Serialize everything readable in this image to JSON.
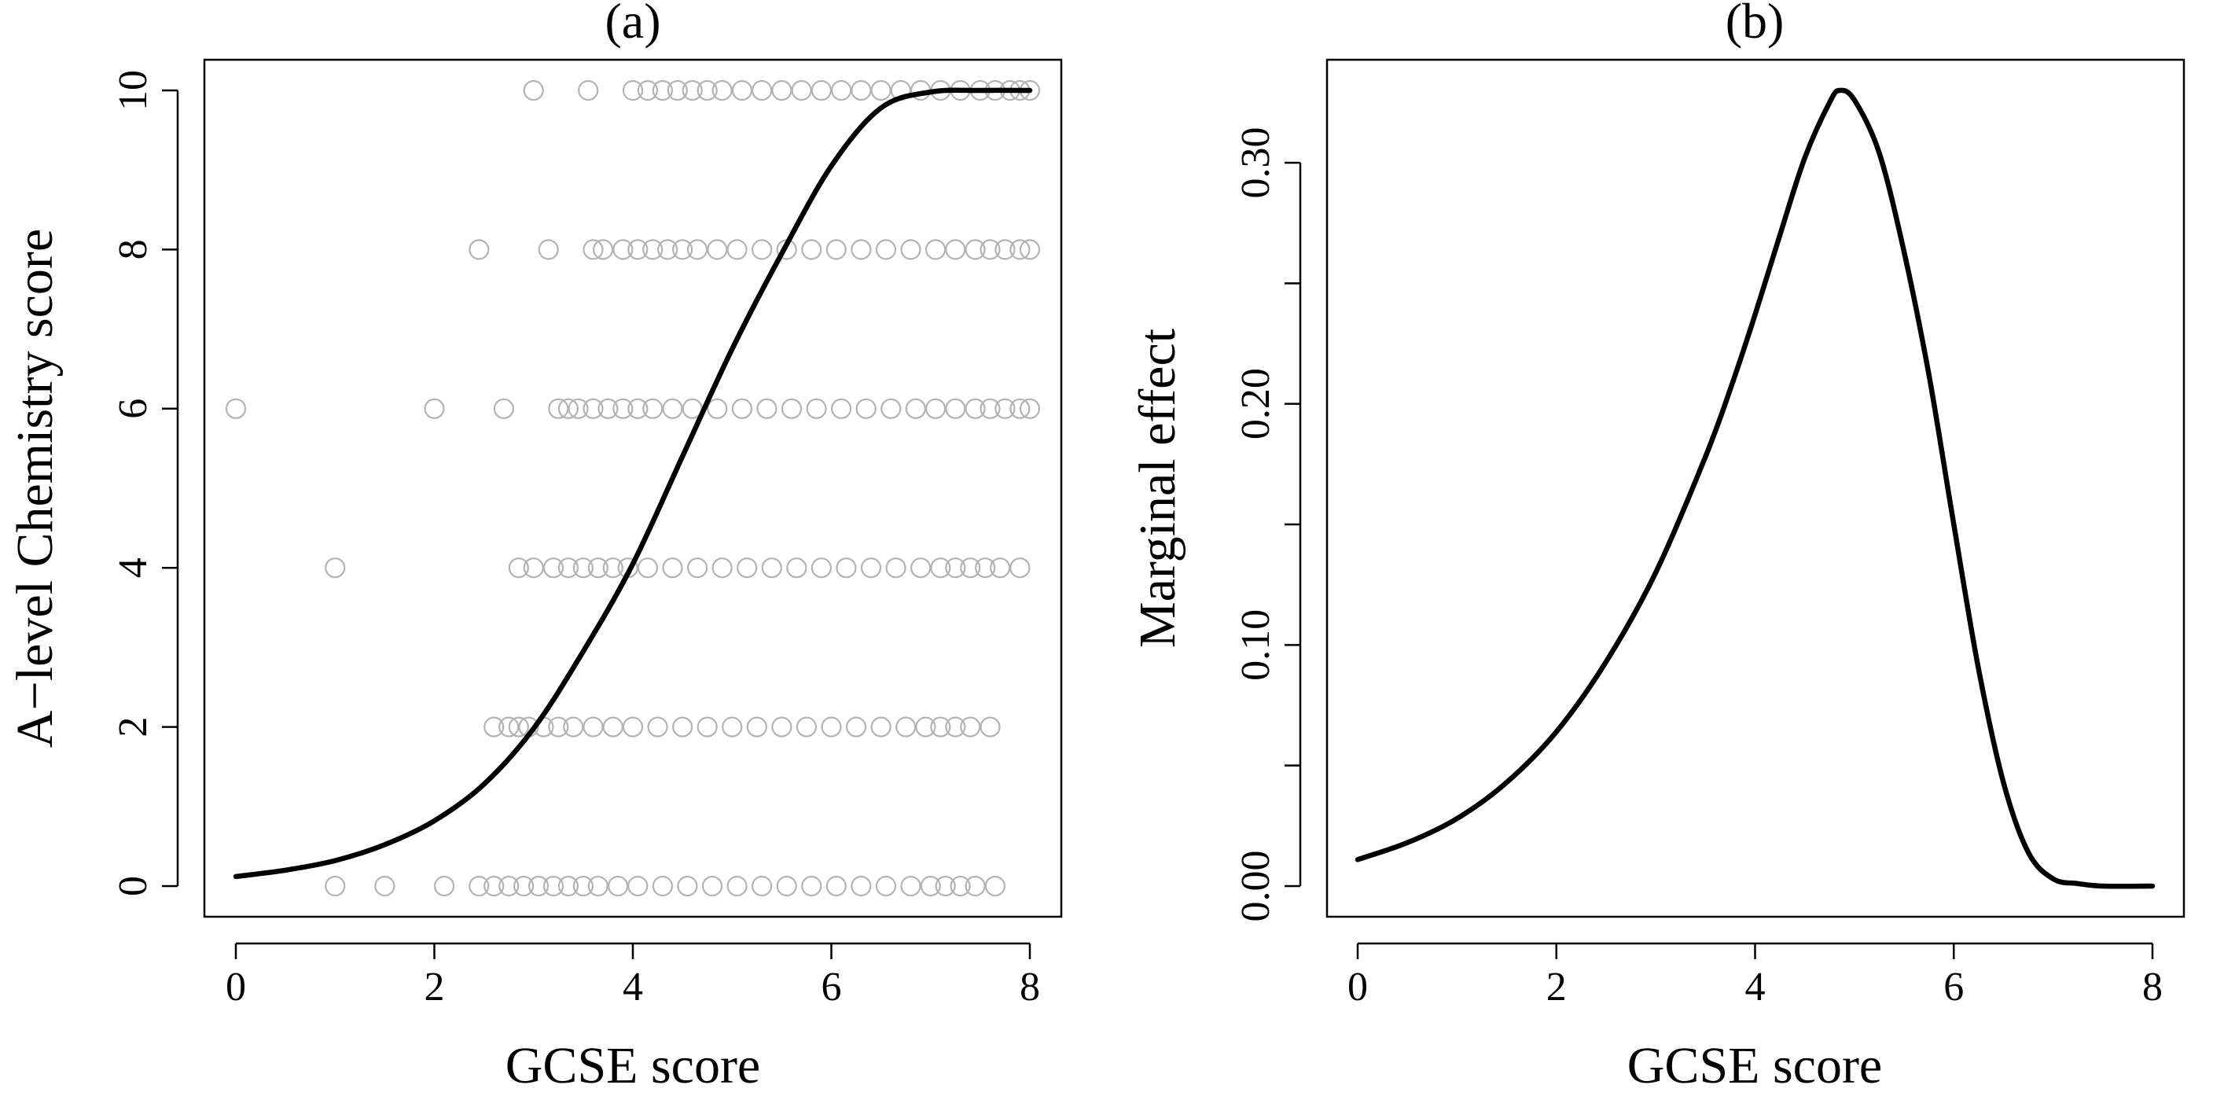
{
  "chart_data": [
    {
      "type": "scatter",
      "title": "(a)",
      "xlabel": "GCSE score",
      "ylabel": "A−level Chemistry score",
      "xlim": [
        0,
        8
      ],
      "ylim": [
        0,
        10
      ],
      "xticks": [
        "0",
        "2",
        "4",
        "6",
        "8"
      ],
      "yticks": [
        "0",
        "2",
        "4",
        "6",
        "8",
        "10"
      ],
      "grid": false,
      "legend": "none",
      "colors": {
        "points": "#b3b3b3",
        "curve": "#000000"
      },
      "series": [
        {
          "type": "scatter",
          "marker": "open-circle",
          "points": [
            [
              0,
              6
            ],
            [
              1,
              4
            ],
            [
              1,
              0
            ],
            [
              1.5,
              0
            ],
            [
              2.1,
              0
            ],
            [
              2,
              6
            ],
            [
              2.45,
              8
            ],
            [
              2.7,
              6
            ],
            [
              2.6,
              2
            ],
            [
              2.85,
              4
            ],
            [
              3,
              10
            ],
            [
              3.15,
              8
            ],
            [
              3.55,
              10
            ],
            [
              2.45,
              0
            ],
            [
              2.6,
              0
            ],
            [
              2.75,
              0
            ],
            [
              2.9,
              0
            ],
            [
              3.05,
              0
            ],
            [
              3.2,
              0
            ],
            [
              3.35,
              0
            ],
            [
              3.5,
              0
            ],
            [
              3.65,
              0
            ],
            [
              3.85,
              0
            ],
            [
              4.05,
              0
            ],
            [
              4.3,
              0
            ],
            [
              4.55,
              0
            ],
            [
              4.8,
              0
            ],
            [
              5.05,
              0
            ],
            [
              5.3,
              0
            ],
            [
              5.55,
              0
            ],
            [
              5.8,
              0
            ],
            [
              6.05,
              0
            ],
            [
              6.3,
              0
            ],
            [
              6.55,
              0
            ],
            [
              6.8,
              0
            ],
            [
              7.0,
              0
            ],
            [
              7.15,
              0
            ],
            [
              7.3,
              0
            ],
            [
              7.45,
              0
            ],
            [
              7.65,
              0
            ],
            [
              2.75,
              2
            ],
            [
              2.85,
              2
            ],
            [
              2.95,
              2
            ],
            [
              3.1,
              2
            ],
            [
              3.25,
              2
            ],
            [
              3.4,
              2
            ],
            [
              3.6,
              2
            ],
            [
              3.8,
              2
            ],
            [
              4.0,
              2
            ],
            [
              4.25,
              2
            ],
            [
              4.5,
              2
            ],
            [
              4.75,
              2
            ],
            [
              5.0,
              2
            ],
            [
              5.25,
              2
            ],
            [
              5.5,
              2
            ],
            [
              5.75,
              2
            ],
            [
              6.0,
              2
            ],
            [
              6.25,
              2
            ],
            [
              6.5,
              2
            ],
            [
              6.75,
              2
            ],
            [
              6.95,
              2
            ],
            [
              7.1,
              2
            ],
            [
              7.25,
              2
            ],
            [
              7.4,
              2
            ],
            [
              7.6,
              2
            ],
            [
              3.0,
              4
            ],
            [
              3.2,
              4
            ],
            [
              3.35,
              4
            ],
            [
              3.5,
              4
            ],
            [
              3.65,
              4
            ],
            [
              3.8,
              4
            ],
            [
              3.95,
              4
            ],
            [
              4.15,
              4
            ],
            [
              4.4,
              4
            ],
            [
              4.65,
              4
            ],
            [
              4.9,
              4
            ],
            [
              5.15,
              4
            ],
            [
              5.4,
              4
            ],
            [
              5.65,
              4
            ],
            [
              5.9,
              4
            ],
            [
              6.15,
              4
            ],
            [
              6.4,
              4
            ],
            [
              6.65,
              4
            ],
            [
              6.9,
              4
            ],
            [
              7.1,
              4
            ],
            [
              7.25,
              4
            ],
            [
              7.4,
              4
            ],
            [
              7.55,
              4
            ],
            [
              7.7,
              4
            ],
            [
              7.9,
              4
            ],
            [
              3.25,
              6
            ],
            [
              3.35,
              6
            ],
            [
              3.45,
              6
            ],
            [
              3.6,
              6
            ],
            [
              3.75,
              6
            ],
            [
              3.9,
              6
            ],
            [
              4.05,
              6
            ],
            [
              4.2,
              6
            ],
            [
              4.4,
              6
            ],
            [
              4.6,
              6
            ],
            [
              4.85,
              6
            ],
            [
              5.1,
              6
            ],
            [
              5.35,
              6
            ],
            [
              5.6,
              6
            ],
            [
              5.85,
              6
            ],
            [
              6.1,
              6
            ],
            [
              6.35,
              6
            ],
            [
              6.6,
              6
            ],
            [
              6.85,
              6
            ],
            [
              7.05,
              6
            ],
            [
              7.25,
              6
            ],
            [
              7.45,
              6
            ],
            [
              7.6,
              6
            ],
            [
              7.75,
              6
            ],
            [
              7.9,
              6
            ],
            [
              8.0,
              6
            ],
            [
              3.6,
              8
            ],
            [
              3.7,
              8
            ],
            [
              3.9,
              8
            ],
            [
              4.05,
              8
            ],
            [
              4.2,
              8
            ],
            [
              4.35,
              8
            ],
            [
              4.5,
              8
            ],
            [
              4.65,
              8
            ],
            [
              4.85,
              8
            ],
            [
              5.05,
              8
            ],
            [
              5.3,
              8
            ],
            [
              5.55,
              8
            ],
            [
              5.8,
              8
            ],
            [
              6.05,
              8
            ],
            [
              6.3,
              8
            ],
            [
              6.55,
              8
            ],
            [
              6.8,
              8
            ],
            [
              7.05,
              8
            ],
            [
              7.25,
              8
            ],
            [
              7.45,
              8
            ],
            [
              7.6,
              8
            ],
            [
              7.75,
              8
            ],
            [
              7.9,
              8
            ],
            [
              8.0,
              8
            ],
            [
              4.0,
              10
            ],
            [
              4.15,
              10
            ],
            [
              4.3,
              10
            ],
            [
              4.45,
              10
            ],
            [
              4.6,
              10
            ],
            [
              4.75,
              10
            ],
            [
              4.9,
              10
            ],
            [
              5.1,
              10
            ],
            [
              5.3,
              10
            ],
            [
              5.5,
              10
            ],
            [
              5.7,
              10
            ],
            [
              5.9,
              10
            ],
            [
              6.1,
              10
            ],
            [
              6.3,
              10
            ],
            [
              6.5,
              10
            ],
            [
              6.7,
              10
            ],
            [
              6.9,
              10
            ],
            [
              7.1,
              10
            ],
            [
              7.3,
              10
            ],
            [
              7.5,
              10
            ],
            [
              7.65,
              10
            ],
            [
              7.8,
              10
            ],
            [
              7.9,
              10
            ],
            [
              8.0,
              10
            ]
          ]
        },
        {
          "type": "line",
          "x": [
            0,
            0.5,
            1,
            1.5,
            2,
            2.5,
            3,
            3.5,
            4,
            4.5,
            5,
            5.5,
            6,
            6.5,
            7,
            7.5,
            8
          ],
          "y": [
            0.12,
            0.2,
            0.32,
            0.52,
            0.82,
            1.28,
            1.98,
            2.95,
            4.05,
            5.4,
            6.75,
            7.95,
            9.05,
            9.78,
            9.98,
            10.0,
            10.0
          ]
        }
      ]
    },
    {
      "type": "line",
      "title": "(b)",
      "xlabel": "GCSE score",
      "ylabel": "Marginal effect",
      "xlim": [
        0,
        8
      ],
      "ylim": [
        0,
        0.33
      ],
      "xticks": [
        "0",
        "2",
        "4",
        "6",
        "8"
      ],
      "yticks_labeled": [
        "0.00",
        "0.10",
        "0.20",
        "0.30"
      ],
      "yticks_minor": [
        0.05,
        0.15,
        0.25
      ],
      "grid": false,
      "legend": "none",
      "colors": {
        "curve": "#000000"
      },
      "series": [
        {
          "x": [
            0,
            0.5,
            1,
            1.5,
            2,
            2.5,
            3,
            3.5,
            3.75,
            4,
            4.25,
            4.5,
            4.75,
            4.85,
            5,
            5.25,
            5.5,
            5.75,
            6,
            6.25,
            6.5,
            6.75,
            7,
            7.25,
            7.5,
            8
          ],
          "y": [
            0.011,
            0.018,
            0.028,
            0.043,
            0.064,
            0.093,
            0.13,
            0.178,
            0.206,
            0.237,
            0.27,
            0.302,
            0.325,
            0.33,
            0.326,
            0.304,
            0.263,
            0.212,
            0.15,
            0.09,
            0.043,
            0.014,
            0.003,
            0.001,
            0.0,
            0.0
          ]
        }
      ]
    }
  ]
}
